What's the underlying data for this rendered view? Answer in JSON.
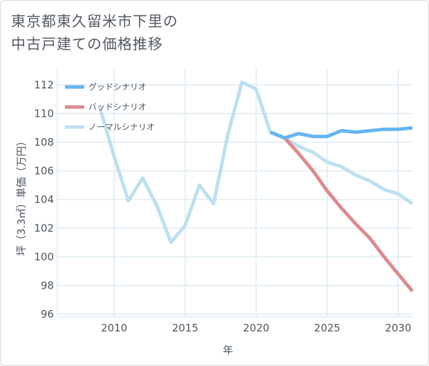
{
  "title": {
    "line1": "東京都東久留米市下里の",
    "line2": "中古戸建ての価格推移"
  },
  "chart_data": {
    "type": "line",
    "xlabel": "年",
    "ylabel": "坪（3.3㎡）単価（万円）",
    "xlim": [
      2006,
      2031
    ],
    "ylim": [
      95.8,
      113.2
    ],
    "xticks": [
      2010,
      2015,
      2020,
      2025,
      2030
    ],
    "yticks": [
      96,
      98,
      100,
      102,
      104,
      106,
      108,
      110,
      112
    ],
    "grid": true,
    "legend_position": "top-left",
    "series": [
      {
        "name": "グッドシナリオ",
        "color": "#64b5f0",
        "x": [
          2021,
          2022,
          2023,
          2024,
          2025,
          2026,
          2027,
          2028,
          2029,
          2030,
          2031
        ],
        "y": [
          108.7,
          108.3,
          108.6,
          108.4,
          108.4,
          108.8,
          108.7,
          108.8,
          108.9,
          108.9,
          109.0
        ]
      },
      {
        "name": "バッドシナリオ",
        "color": "#dc8a8f",
        "x": [
          2021,
          2022,
          2023,
          2024,
          2025,
          2026,
          2027,
          2028,
          2029,
          2030,
          2031
        ],
        "y": [
          108.7,
          108.3,
          107.2,
          106.0,
          104.6,
          103.4,
          102.3,
          101.3,
          100.0,
          98.8,
          97.6
        ]
      },
      {
        "name": "ノーマルシナリオ",
        "color": "#bde0f0",
        "x": [
          2009,
          2010,
          2011,
          2012,
          2013,
          2014,
          2015,
          2016,
          2017,
          2018,
          2019,
          2020,
          2021,
          2022,
          2023,
          2024,
          2025,
          2026,
          2027,
          2028,
          2029,
          2030,
          2031
        ],
        "y": [
          110.4,
          107.0,
          103.9,
          105.5,
          103.6,
          101.0,
          102.2,
          105.0,
          103.7,
          108.5,
          112.2,
          111.7,
          108.7,
          108.3,
          107.7,
          107.3,
          106.6,
          106.3,
          105.7,
          105.3,
          104.7,
          104.4,
          103.7
        ]
      }
    ]
  }
}
